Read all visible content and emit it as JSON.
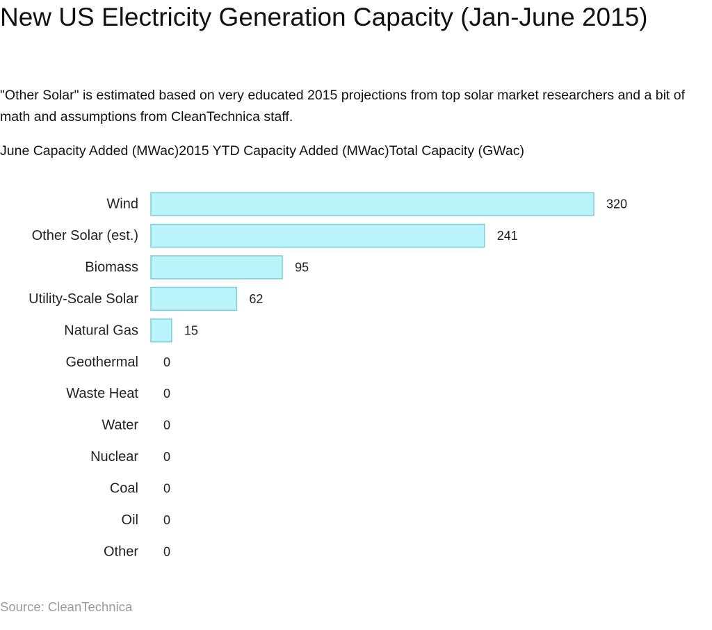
{
  "header": {
    "title": "New US Electricity Generation Capacity (Jan-June 2015)",
    "subtitle": "\"Other Solar\" is estimated based on very educated 2015 projections from top solar market researchers and a bit of math and assumptions from CleanTechnica staff."
  },
  "tabs": [
    {
      "label": "June Capacity Added (MWac)"
    },
    {
      "label": "2015 YTD Capacity Added (MWac)"
    },
    {
      "label": "Total Capacity (GWac)"
    }
  ],
  "colors": {
    "bar_fill": "#bbf3fa",
    "bar_stroke": "#7ccfdc",
    "source_text": "#9a9a9a"
  },
  "chart_data": {
    "type": "bar",
    "orientation": "horizontal",
    "title": "New US Electricity Generation Capacity (Jan-June 2015)",
    "xlabel": "",
    "ylabel": "",
    "xlim": [
      0,
      320
    ],
    "grid": false,
    "categories": [
      "Wind",
      "Other Solar (est.)",
      "Biomass",
      "Utility-Scale Solar",
      "Natural Gas",
      "Geothermal",
      "Waste Heat",
      "Water",
      "Nuclear",
      "Coal",
      "Oil",
      "Other"
    ],
    "values": [
      320,
      241,
      95,
      62,
      15,
      0,
      0,
      0,
      0,
      0,
      0,
      0
    ],
    "value_labels": [
      "320",
      "241",
      "95",
      "62",
      "15",
      "0",
      "0",
      "0",
      "0",
      "0",
      "0",
      "0"
    ]
  },
  "footer": {
    "source": "Source: CleanTechnica"
  }
}
